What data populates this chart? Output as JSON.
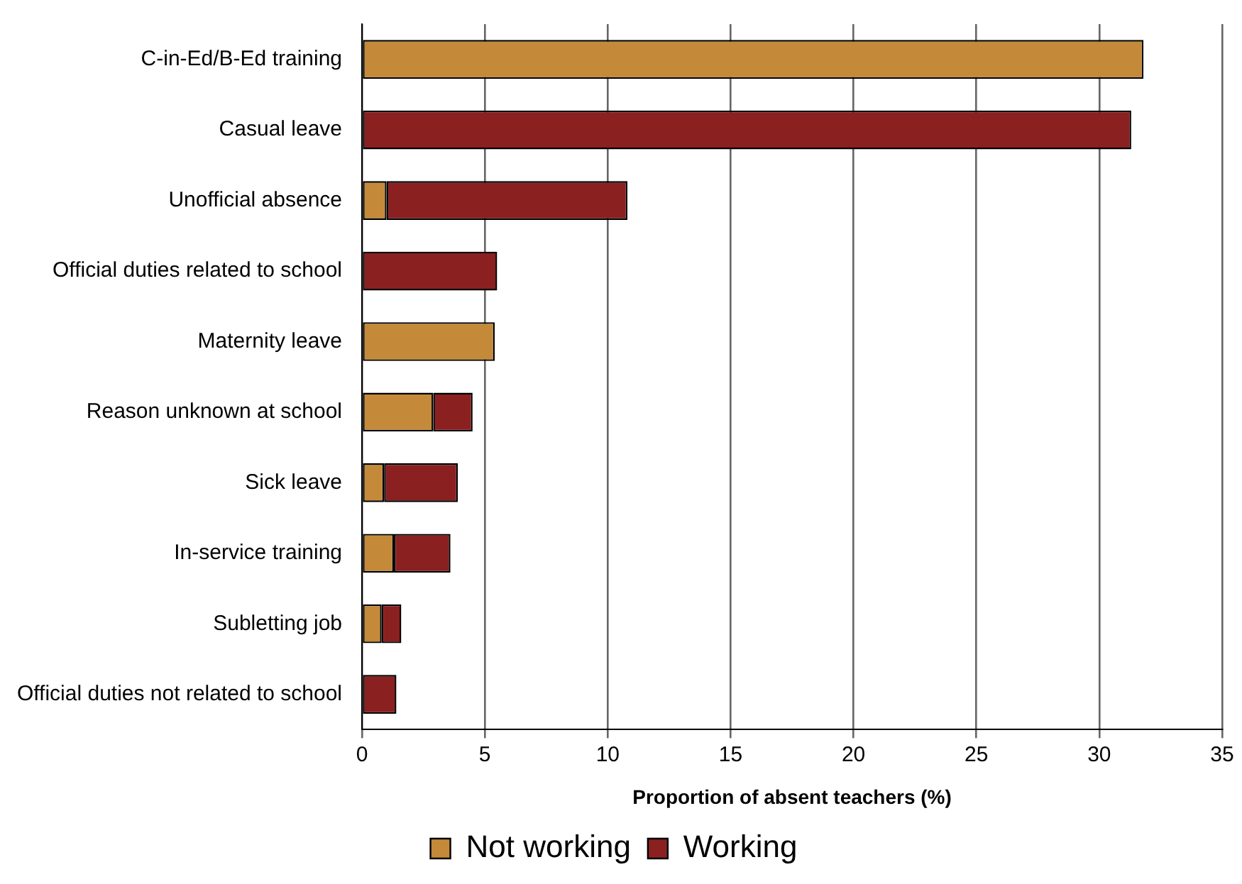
{
  "chart_data": {
    "type": "bar",
    "orientation": "horizontal",
    "stacked": true,
    "categories": [
      "C-in-Ed/B-Ed training",
      "Casual leave",
      "Unofficial absence",
      "Official duties related to school",
      "Maternity leave",
      "Reason unknown at school",
      "Sick leave",
      "In-service training",
      "Subletting job",
      "Official duties not related to school"
    ],
    "series": [
      {
        "name": "Not working",
        "color": "#c48a3a",
        "values": [
          31.8,
          0,
          1.0,
          0,
          5.4,
          2.9,
          0.9,
          1.3,
          0.8,
          0
        ]
      },
      {
        "name": "Working",
        "color": "#8b2020",
        "values": [
          0,
          31.3,
          9.8,
          5.5,
          0,
          1.6,
          3.0,
          2.3,
          0.8,
          1.4
        ]
      }
    ],
    "xlabel": "Proportion of absent teachers (%)",
    "xlim": [
      0,
      35
    ],
    "xticks": [
      0,
      5,
      10,
      15,
      20,
      25,
      30,
      35
    ],
    "grid": "x",
    "legend": "bottom"
  }
}
